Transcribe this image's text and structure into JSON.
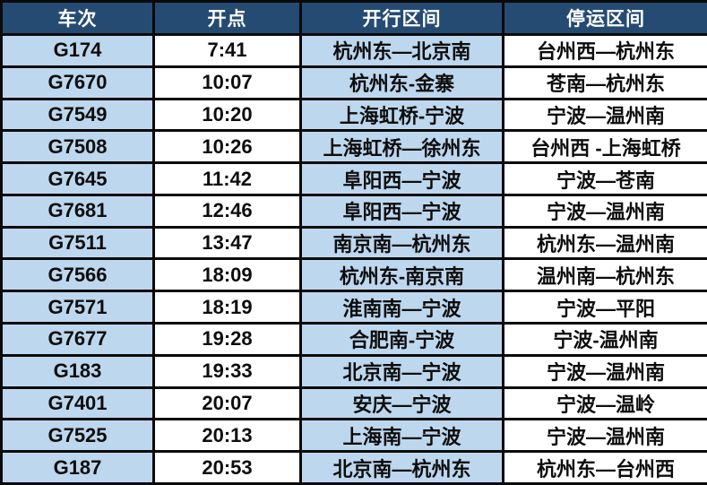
{
  "colors": {
    "header_bg": "#264b73",
    "header_text": "#ffffff",
    "band_blue": "#bdd7ee",
    "band_white": "#ffffff",
    "border": "#0a0a0a",
    "cell_text": "#0d0d0d"
  },
  "table": {
    "headers": [
      "车次",
      "开点",
      "开行区间",
      "停运区间"
    ],
    "rows": [
      [
        "G174",
        "7:41",
        "杭州东—北京南",
        "台州西—杭州东"
      ],
      [
        "G7670",
        "10:07",
        "杭州东-金寨",
        "苍南—杭州东"
      ],
      [
        "G7549",
        "10:20",
        "上海虹桥-宁波",
        "宁波—温州南"
      ],
      [
        "G7508",
        "10:26",
        "上海虹桥—徐州东",
        "台州西 -上海虹桥"
      ],
      [
        "G7645",
        "11:42",
        "阜阳西—宁波",
        "宁波—苍南"
      ],
      [
        "G7681",
        "12:46",
        "阜阳西—宁波",
        "宁波—温州南"
      ],
      [
        "G7511",
        "13:47",
        "南京南—杭州东",
        "杭州东—温州南"
      ],
      [
        "G7566",
        "18:09",
        "杭州东-南京南",
        "温州南—杭州东"
      ],
      [
        "G7571",
        "18:19",
        "淮南南—宁波",
        "宁波—平阳"
      ],
      [
        "G7677",
        "19:28",
        "合肥南-宁波",
        "宁波-温州南"
      ],
      [
        "G183",
        "19:33",
        "北京南—宁波",
        "宁波—温州南"
      ],
      [
        "G7401",
        "20:07",
        "安庆—宁波",
        "宁波—温岭"
      ],
      [
        "G7525",
        "20:13",
        "上海南—宁波",
        "宁波—温州南"
      ],
      [
        "G187",
        "20:53",
        "北京南—杭州东",
        "杭州东—台州西"
      ]
    ]
  },
  "chart_data": {
    "type": "table",
    "title": "",
    "columns": [
      "车次",
      "开点",
      "开行区间",
      "停运区间"
    ],
    "rows": [
      [
        "G174",
        "7:41",
        "杭州东—北京南",
        "台州西—杭州东"
      ],
      [
        "G7670",
        "10:07",
        "杭州东-金寨",
        "苍南—杭州东"
      ],
      [
        "G7549",
        "10:20",
        "上海虹桥-宁波",
        "宁波—温州南"
      ],
      [
        "G7508",
        "10:26",
        "上海虹桥—徐州东",
        "台州西 -上海虹桥"
      ],
      [
        "G7645",
        "11:42",
        "阜阳西—宁波",
        "宁波—苍南"
      ],
      [
        "G7681",
        "12:46",
        "阜阳西—宁波",
        "宁波—温州南"
      ],
      [
        "G7511",
        "13:47",
        "南京南—杭州东",
        "杭州东—温州南"
      ],
      [
        "G7566",
        "18:09",
        "杭州东-南京南",
        "温州南—杭州东"
      ],
      [
        "G7571",
        "18:19",
        "淮南南—宁波",
        "宁波—平阳"
      ],
      [
        "G7677",
        "19:28",
        "合肥南-宁波",
        "宁波-温州南"
      ],
      [
        "G183",
        "19:33",
        "北京南—宁波",
        "宁波—温州南"
      ],
      [
        "G7401",
        "20:07",
        "安庆—宁波",
        "宁波—温岭"
      ],
      [
        "G7525",
        "20:13",
        "上海南—宁波",
        "宁波—温州南"
      ],
      [
        "G187",
        "20:53",
        "北京南—杭州东",
        "杭州东—台州西"
      ]
    ],
    "layout_hints": {
      "striping": "columns 1 and 3 light blue, columns 2 and 4 white",
      "header_style": "dark navy background, white bold text",
      "grid": "thick black borders"
    }
  }
}
